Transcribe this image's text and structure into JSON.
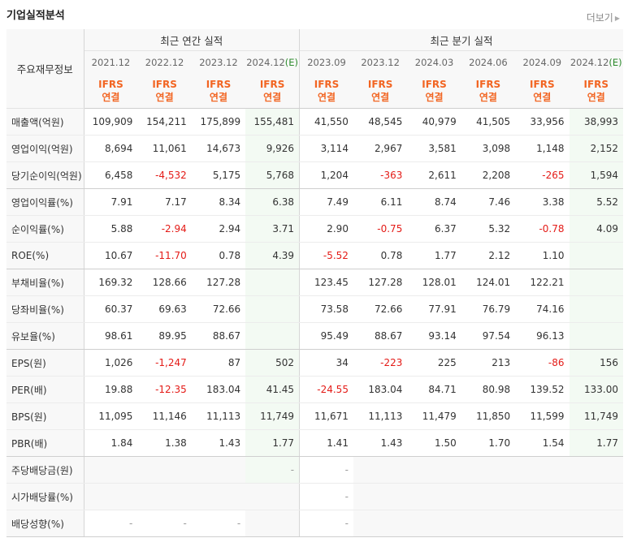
{
  "header": {
    "title": "기업실적분석",
    "more_label": "더보기",
    "more_icon": "triangle-right-icon"
  },
  "table": {
    "corner_label": "주요재무정보",
    "group_annual": "최근 연간 실적",
    "group_quarter": "최근 분기 실적",
    "periods": [
      {
        "label": "2021.12"
      },
      {
        "label": "2022.12"
      },
      {
        "label": "2023.12"
      },
      {
        "label": "2024.12",
        "est": "(E)"
      },
      {
        "label": "2023.09"
      },
      {
        "label": "2023.12"
      },
      {
        "label": "2024.03"
      },
      {
        "label": "2024.06"
      },
      {
        "label": "2024.09"
      },
      {
        "label": "2024.12",
        "est": "(E)"
      }
    ],
    "ifrs_line1": "IFRS",
    "ifrs_line2": "연결",
    "rows": [
      {
        "label": "매출액(억원)",
        "values": [
          "109,909",
          "154,211",
          "175,899",
          "155,481",
          "41,550",
          "48,545",
          "40,979",
          "41,505",
          "33,956",
          "38,993"
        ]
      },
      {
        "label": "영업이익(억원)",
        "values": [
          "8,694",
          "11,061",
          "14,673",
          "9,926",
          "3,114",
          "2,967",
          "3,581",
          "3,098",
          "1,148",
          "2,152"
        ]
      },
      {
        "label": "당기순이익(억원)",
        "values": [
          "6,458",
          "-4,532",
          "5,175",
          "5,768",
          "1,204",
          "-363",
          "2,611",
          "2,208",
          "-265",
          "1,594"
        ]
      },
      {
        "label": "영업이익률(%)",
        "values": [
          "7.91",
          "7.17",
          "8.34",
          "6.38",
          "7.49",
          "6.11",
          "8.74",
          "7.46",
          "3.38",
          "5.52"
        ]
      },
      {
        "label": "순이익률(%)",
        "values": [
          "5.88",
          "-2.94",
          "2.94",
          "3.71",
          "2.90",
          "-0.75",
          "6.37",
          "5.32",
          "-0.78",
          "4.09"
        ]
      },
      {
        "label": "ROE(%)",
        "values": [
          "10.67",
          "-11.70",
          "0.78",
          "4.39",
          "-5.52",
          "0.78",
          "1.77",
          "2.12",
          "1.10",
          ""
        ]
      },
      {
        "label": "부채비율(%)",
        "values": [
          "169.32",
          "128.66",
          "127.28",
          "",
          "123.45",
          "127.28",
          "128.01",
          "124.01",
          "122.21",
          ""
        ]
      },
      {
        "label": "당좌비율(%)",
        "values": [
          "60.37",
          "69.63",
          "72.66",
          "",
          "73.58",
          "72.66",
          "77.91",
          "76.79",
          "74.16",
          ""
        ]
      },
      {
        "label": "유보율(%)",
        "values": [
          "98.61",
          "89.95",
          "88.67",
          "",
          "95.49",
          "88.67",
          "93.14",
          "97.54",
          "96.13",
          ""
        ]
      },
      {
        "label": "EPS(원)",
        "values": [
          "1,026",
          "-1,247",
          "87",
          "502",
          "34",
          "-223",
          "225",
          "213",
          "-86",
          "156"
        ]
      },
      {
        "label": "PER(배)",
        "values": [
          "19.88",
          "-12.35",
          "183.04",
          "41.45",
          "-24.55",
          "183.04",
          "84.71",
          "80.98",
          "139.52",
          "133.00"
        ]
      },
      {
        "label": "BPS(원)",
        "values": [
          "11,095",
          "11,146",
          "11,113",
          "11,749",
          "11,671",
          "11,113",
          "11,479",
          "11,850",
          "11,599",
          "11,749"
        ]
      },
      {
        "label": "PBR(배)",
        "values": [
          "1.84",
          "1.38",
          "1.43",
          "1.77",
          "1.41",
          "1.43",
          "1.50",
          "1.70",
          "1.54",
          "1.77"
        ]
      },
      {
        "label": "주당배당금(원)",
        "values": [
          "",
          "",
          "",
          "-",
          "-",
          "",
          "",
          "",
          "",
          ""
        ]
      },
      {
        "label": "시가배당률(%)",
        "values": [
          "",
          "",
          "",
          "",
          "-",
          "",
          "",
          "",
          "",
          ""
        ]
      },
      {
        "label": "배당성향(%)",
        "values": [
          "-",
          "-",
          "-",
          "",
          "-",
          "",
          "",
          "",
          "",
          ""
        ]
      }
    ]
  },
  "colors": {
    "negative": "#e41b17",
    "ifrs": "#f26522",
    "estimate_bg": "#f3faf3",
    "estimate_label": "#2e8b2e"
  }
}
